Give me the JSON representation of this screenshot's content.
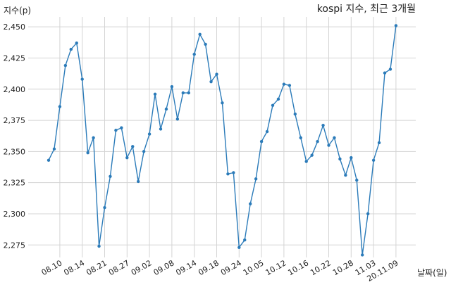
{
  "chart_data": {
    "type": "line",
    "title": "kospi 지수, 최근 3개월",
    "xlabel": "날짜(일)",
    "ylabel": "지수(p)",
    "ylim": [
      2265,
      2458
    ],
    "yticks": [
      2275,
      2300,
      2325,
      2350,
      2375,
      2400,
      2425,
      2450
    ],
    "ytick_labels": [
      "2,275",
      "2,300",
      "2,325",
      "2,350",
      "2,375",
      "2,400",
      "2,425",
      "2,450"
    ],
    "grid": true,
    "x_ticks": [
      {
        "label": "08.10",
        "index": 3
      },
      {
        "label": "08.14",
        "index": 7
      },
      {
        "label": "08.21",
        "index": 11
      },
      {
        "label": "08.27",
        "index": 15
      },
      {
        "label": "09.02",
        "index": 19
      },
      {
        "label": "09.08",
        "index": 23
      },
      {
        "label": "09.14",
        "index": 27
      },
      {
        "label": "09.18",
        "index": 31
      },
      {
        "label": "09.24",
        "index": 35
      },
      {
        "label": "10.05",
        "index": 39
      },
      {
        "label": "10.12",
        "index": 43
      },
      {
        "label": "10.16",
        "index": 47
      },
      {
        "label": "10.22",
        "index": 51
      },
      {
        "label": "10.28",
        "index": 55
      },
      {
        "label": "11.03",
        "index": 59
      },
      {
        "label": "20.11.09",
        "index": 63
      }
    ],
    "series": [
      {
        "color": "#2b7bb9",
        "values": [
          2343,
          2352,
          2386,
          2419,
          2432,
          2437,
          2408,
          2349,
          2361,
          2274,
          2305,
          2330,
          2367,
          2369,
          2345,
          2354,
          2326,
          2350,
          2364,
          2396,
          2368,
          2384,
          2402,
          2376,
          2397,
          2397,
          2428,
          2444,
          2436,
          2406,
          2412,
          2389,
          2332,
          2333,
          2273,
          2279,
          2308,
          2328,
          2358,
          2366,
          2387,
          2392,
          2404,
          2403,
          2380,
          2361,
          2342,
          2347,
          2358,
          2371,
          2355,
          2361,
          2344,
          2331,
          2345,
          2327,
          2267,
          2300,
          2343,
          2357,
          2413,
          2416,
          2451
        ]
      }
    ]
  }
}
